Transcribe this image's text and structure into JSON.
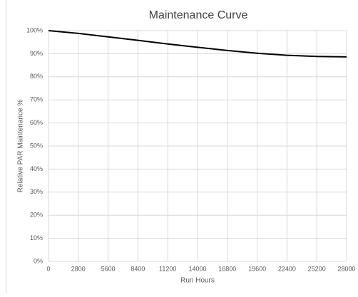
{
  "chart_data": {
    "type": "line",
    "title": "Maintenance Curve",
    "x_label": "Run Hours",
    "y_label": "Relative PAR Maintenance %",
    "x": [
      0,
      2800,
      5600,
      8400,
      11200,
      14000,
      16800,
      19600,
      22400,
      25200,
      28000
    ],
    "series": [
      {
        "name": "Maintenance",
        "color": "#000000",
        "values": [
          100,
          98.8,
          97.3,
          95.8,
          94.2,
          92.8,
          91.4,
          90.2,
          89.3,
          88.8,
          88.6
        ]
      }
    ],
    "xlim": [
      0,
      28000
    ],
    "xticks": [
      0,
      2800,
      5600,
      8400,
      11200,
      14000,
      16800,
      19600,
      22400,
      25200,
      28000
    ],
    "ylim": [
      0,
      100
    ],
    "yticks": [
      {
        "value": 0,
        "label": "0%"
      },
      {
        "value": 10,
        "label": "10%"
      },
      {
        "value": 20,
        "label": "20%"
      },
      {
        "value": 30,
        "label": "30%"
      },
      {
        "value": 40,
        "label": "40%"
      },
      {
        "value": 50,
        "label": "50%"
      },
      {
        "value": 60,
        "label": "60%"
      },
      {
        "value": 70,
        "label": "70%"
      },
      {
        "value": 80,
        "label": "80%"
      },
      {
        "value": 90,
        "label": "90%"
      },
      {
        "value": 100,
        "label": "100%"
      }
    ],
    "grid": true
  }
}
